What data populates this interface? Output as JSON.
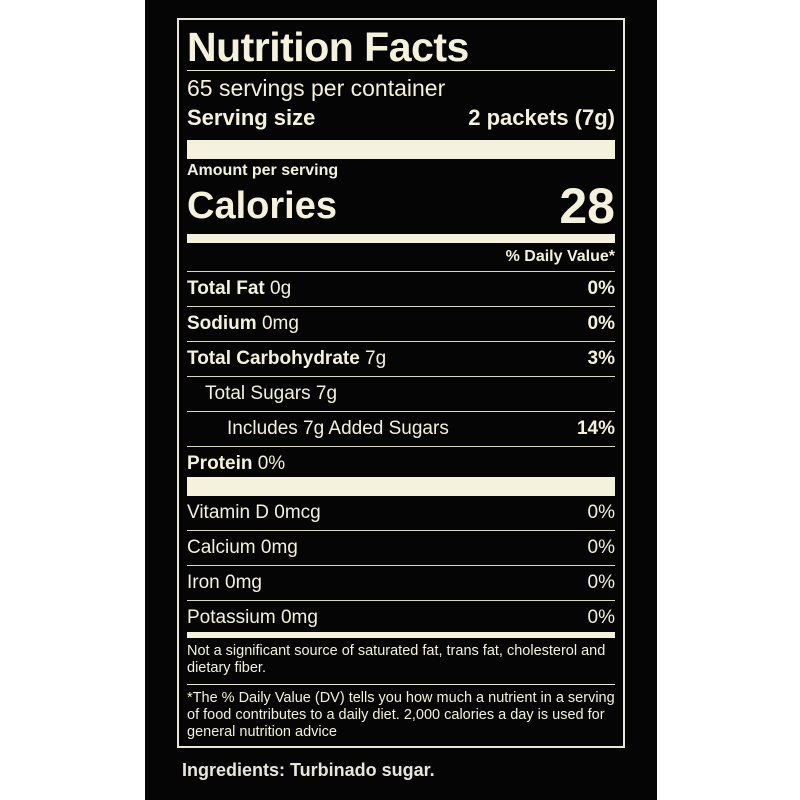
{
  "label": {
    "title": "Nutrition Facts",
    "servings_per_container": "65 servings per container",
    "serving_size_label": "Serving size",
    "serving_size_value": "2 packets (7g)",
    "amount_per_serving": "Amount per serving",
    "calories_label": "Calories",
    "calories_value": "28",
    "daily_value_header": "% Daily Value*",
    "nutrients": [
      {
        "name": "Total Fat",
        "amount": " 0g",
        "dv": "0%"
      },
      {
        "name": "Sodium",
        "amount": " 0mg",
        "dv": "0%"
      },
      {
        "name": "Total Carbohydrate",
        "amount": " 7g",
        "dv": "3%"
      },
      {
        "name": "",
        "amount": "Total Sugars 7g",
        "dv": ""
      },
      {
        "name": "",
        "amount": "Includes 7g Added Sugars",
        "dv": "14%"
      },
      {
        "name": "Protein",
        "amount": " 0%",
        "dv": ""
      }
    ],
    "vitamins": [
      {
        "name": "Vitamin D 0mcg",
        "dv": "0%"
      },
      {
        "name": "Calcium 0mg",
        "dv": "0%"
      },
      {
        "name": "Iron 0mg",
        "dv": "0%"
      },
      {
        "name": "Potassium 0mg",
        "dv": "0%"
      }
    ],
    "not_significant": "Not a significant source of saturated fat, trans fat, cholesterol and dietary fiber.",
    "dv_footnote": "*The % Daily Value (DV) tells you how much a nutrient in a serving of food contributes to a daily diet. 2,000 calories a day is used for general nutrition advice"
  },
  "ingredients": "Ingredients: Turbinado sugar.",
  "colors": {
    "background": "#050505",
    "text": "#f4f1dc"
  }
}
